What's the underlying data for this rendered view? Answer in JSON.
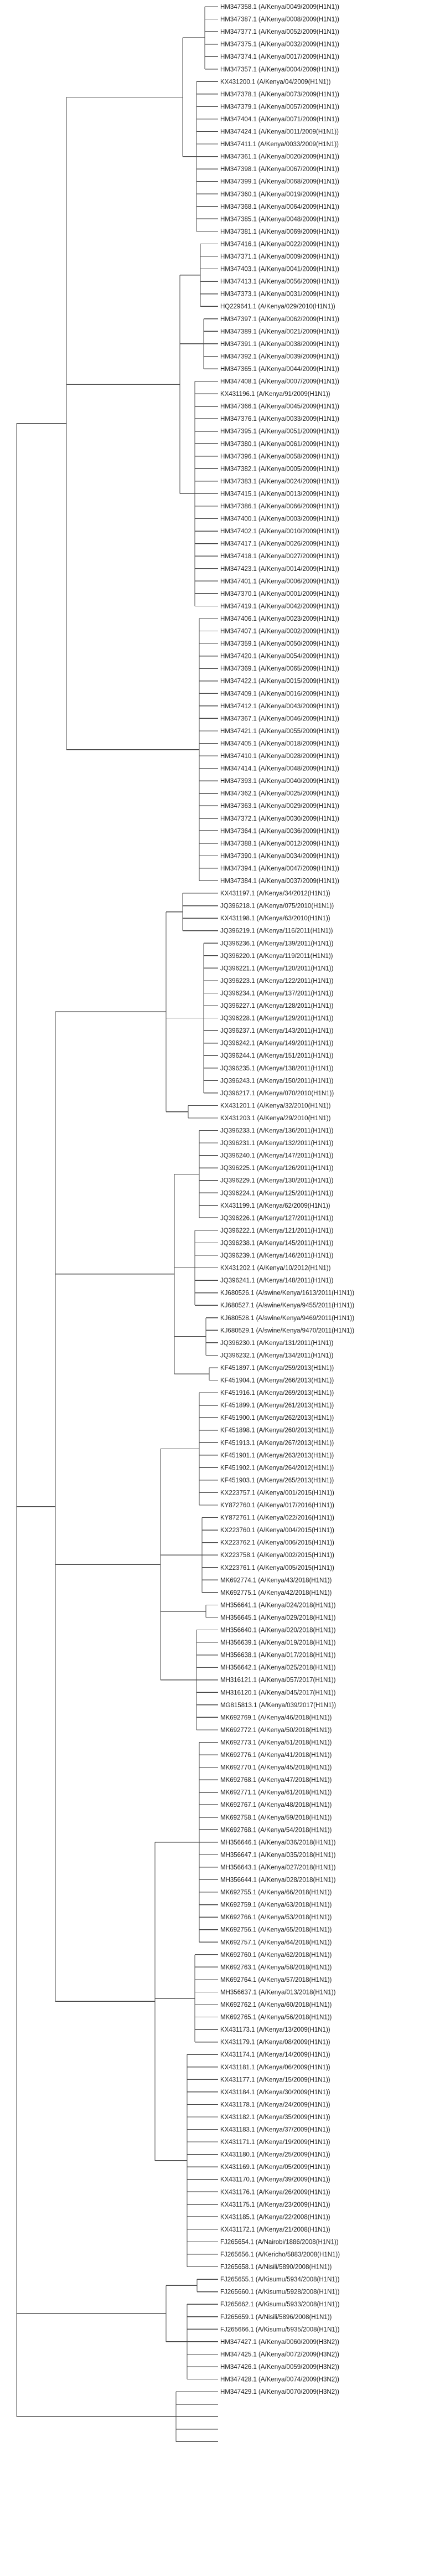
{
  "tree": {
    "leaves": [
      "HM347358.1 (A/Kenya/0049/2009(H1N1))",
      "HM347387.1 (A/Kenya/0008/2009(H1N1))",
      "HM347377.1 (A/Kenya/0052/2009(H1N1))",
      "HM347375.1 (A/Kenya/0032/2009(H1N1))",
      "HM347374.1 (A/Kenya/0017/2009(H1N1))",
      "HM347357.1 (A/Kenya/0004/2009(H1N1))",
      "KX431200.1 (A/Kenya/04/2009(H1N1))",
      "HM347378.1 (A/Kenya/0073/2009(H1N1))",
      "HM347379.1 (A/Kenya/0057/2009(H1N1))",
      "HM347404.1 (A/Kenya/0071/2009(H1N1))",
      "HM347424.1 (A/Kenya/0011/2009(H1N1))",
      "HM347411.1 (A/Kenya/0033/2009(H1N1))",
      "HM347361.1 (A/Kenya/0020/2009(H1N1))",
      "HM347398.1 (A/Kenya/0067/2009(H1N1))",
      "HM347399.1 (A/Kenya/0068/2009(H1N1))",
      "HM347360.1 (A/Kenya/0019/2009(H1N1))",
      "HM347368.1 (A/Kenya/0064/2009(H1N1))",
      "HM347385.1 (A/Kenya/0048/2009(H1N1))",
      "HM347381.1 (A/Kenya/0069/2009(H1N1))",
      "HM347416.1 (A/Kenya/0022/2009(H1N1))",
      "HM347371.1 (A/Kenya/0009/2009(H1N1))",
      "HM347403.1 (A/Kenya/0041/2009(H1N1))",
      "HM347413.1 (A/Kenya/0056/2009(H1N1))",
      "HM347373.1 (A/Kenya/0031/2009(H1N1))",
      "HQ229641.1 (A/Kenya/029/2010(H1N1))",
      "HM347397.1 (A/Kenya/0062/2009(H1N1))",
      "HM347389.1 (A/Kenya/0021/2009(H1N1))",
      "HM347391.1 (A/Kenya/0038/2009(H1N1))",
      "HM347392.1 (A/Kenya/0039/2009(H1N1))",
      "HM347365.1 (A/Kenya/0044/2009(H1N1))",
      "HM347408.1 (A/Kenya/0007/2009(H1N1))",
      "KX431196.1 (A/Kenya/91/2009(H1N1))",
      "HM347366.1 (A/Kenya/0045/2009(H1N1))",
      "HM347376.1 (A/Kenya/0033/2009(H1N1))",
      "HM347395.1 (A/Kenya/0051/2009(H1N1))",
      "HM347380.1 (A/Kenya/0061/2009(H1N1))",
      "HM347396.1 (A/Kenya/0058/2009(H1N1))",
      "HM347382.1 (A/Kenya/0005/2009(H1N1))",
      "HM347383.1 (A/Kenya/0024/2009(H1N1))",
      "HM347415.1 (A/Kenya/0013/2009(H1N1))",
      "HM347386.1 (A/Kenya/0066/2009(H1N1))",
      "HM347400.1 (A/Kenya/0003/2009(H1N1))",
      "HM347402.1 (A/Kenya/0010/2009(H1N1))",
      "HM347417.1 (A/Kenya/0026/2009(H1N1))",
      "HM347418.1 (A/Kenya/0027/2009(H1N1))",
      "HM347423.1 (A/Kenya/0014/2009(H1N1))",
      "HM347401.1 (A/Kenya/0006/2009(H1N1))",
      "HM347370.1 (A/Kenya/0001/2009(H1N1))",
      "HM347419.1 (A/Kenya/0042/2009(H1N1))",
      "HM347406.1 (A/Kenya/0023/2009(H1N1))",
      "HM347407.1 (A/Kenya/0002/2009(H1N1))",
      "HM347359.1 (A/Kenya/0050/2009(H1N1))",
      "HM347420.1 (A/Kenya/0054/2009(H1N1))",
      "HM347369.1 (A/Kenya/0065/2009(H1N1))",
      "HM347422.1 (A/Kenya/0015/2009(H1N1))",
      "HM347409.1 (A/Kenya/0016/2009(H1N1))",
      "HM347412.1 (A/Kenya/0043/2009(H1N1))",
      "HM347367.1 (A/Kenya/0046/2009(H1N1))",
      "HM347421.1 (A/Kenya/0055/2009(H1N1))",
      "HM347405.1 (A/Kenya/0018/2009(H1N1))",
      "HM347410.1 (A/Kenya/0028/2009(H1N1))",
      "HM347414.1 (A/Kenya/0048/2009(H1N1))",
      "HM347393.1 (A/Kenya/0040/2009(H1N1))",
      "HM347362.1 (A/Kenya/0025/2009(H1N1))",
      "HM347363.1 (A/Kenya/0029/2009(H1N1))",
      "HM347372.1 (A/Kenya/0030/2009(H1N1))",
      "HM347364.1 (A/Kenya/0036/2009(H1N1))",
      "HM347388.1 (A/Kenya/0012/2009(H1N1))",
      "HM347390.1 (A/Kenya/0034/2009(H1N1))",
      "HM347394.1 (A/Kenya/0047/2009(H1N1))",
      "HM347384.1 (A/Kenya/0037/2009(H1N1))",
      "KX431197.1 (A/Kenya/34/2012(H1N1))",
      "JQ396218.1 (A/Kenya/075/2010(H1N1))",
      "KX431198.1 (A/Kenya/63/2010(H1N1))",
      "JQ396219.1 (A/Kenya/116/2011(H1N1))",
      "JQ396236.1 (A/Kenya/139/2011(H1N1))",
      "JQ396220.1 (A/Kenya/119/2011(H1N1))",
      "JQ396221.1 (A/Kenya/120/2011(H1N1))",
      "JQ396223.1 (A/Kenya/122/2011(H1N1))",
      "JQ396234.1 (A/Kenya/137/2011(H1N1))",
      "JQ396227.1 (A/Kenya/128/2011(H1N1))",
      "JQ396228.1 (A/Kenya/129/2011(H1N1))",
      "JQ396237.1 (A/Kenya/143/2011(H1N1))",
      "JQ396242.1 (A/Kenya/149/2011(H1N1))",
      "JQ396244.1 (A/Kenya/151/2011(H1N1))",
      "JQ396235.1 (A/Kenya/138/2011(H1N1))",
      "JQ396243.1 (A/Kenya/150/2011(H1N1))",
      "JQ396217.1 (A/Kenya/070/2010(H1N1))",
      "KX431201.1 (A/Kenya/32/2010(H1N1))",
      "KX431203.1 (A/Kenya/29/2010(H1N1))",
      "JQ396233.1 (A/Kenya/136/2011(H1N1))",
      "JQ396231.1 (A/Kenya/132/2011(H1N1))",
      "JQ396240.1 (A/Kenya/147/2011(H1N1))",
      "JQ396225.1 (A/Kenya/126/2011(H1N1))",
      "JQ396229.1 (A/Kenya/130/2011(H1N1))",
      "JQ396224.1 (A/Kenya/125/2011(H1N1))",
      "KX431199.1 (A/Kenya/62/2009(H1N1))",
      "JQ396226.1 (A/Kenya/127/2011(H1N1))",
      "JQ396222.1 (A/Kenya/121/2011(H1N1))",
      "JQ396238.1 (A/Kenya/145/2011(H1N1))",
      "JQ396239.1 (A/Kenya/146/2011(H1N1))",
      "KX431202.1 (A/Kenya/10/2012(H1N1))",
      "JQ396241.1 (A/Kenya/148/2011(H1N1))",
      "KJ680526.1 (A/swine/Kenya/1613/2011(H1N1))",
      "KJ680527.1 (A/swine/Kenya/9455/2011(H1N1))",
      "KJ680528.1 (A/swine/Kenya/9469/2011(H1N1))",
      "KJ680529.1 (A/swine/Kenya/9470/2011(H1N1))",
      "JQ396230.1 (A/Kenya/131/2011(H1N1))",
      "JQ396232.1 (A/Kenya/134/2011(H1N1))",
      "KF451897.1 (A/Kenya/259/2013(H1N1))",
      "KF451904.1 (A/Kenya/266/2013(H1N1))",
      "KF451916.1 (A/Kenya/269/2013(H1N1))",
      "KF451899.1 (A/Kenya/261/2013(H1N1))",
      "KF451900.1 (A/Kenya/262/2013(H1N1))",
      "KF451898.1 (A/Kenya/260/2013(H1N1))",
      "KF451913.1 (A/Kenya/267/2013(H1N1))",
      "KF451901.1 (A/Kenya/263/2013(H1N1))",
      "KF451902.1 (A/Kenya/264/2012(H1N1))",
      "KF451903.1 (A/Kenya/265/2013(H1N1))",
      "KX223757.1 (A/Kenya/001/2015(H1N1))",
      "KY872760.1 (A/Kenya/017/2016(H1N1))",
      "KY872761.1 (A/Kenya/022/2016(H1N1))",
      "KX223760.1 (A/Kenya/004/2015(H1N1))",
      "KX223762.1 (A/Kenya/006/2015(H1N1))",
      "KX223758.1 (A/Kenya/002/2015(H1N1))",
      "KX223761.1 (A/Kenya/005/2015(H1N1))",
      "MK692774.1 (A/Kenya/43/2018(H1N1))",
      "MK692775.1 (A/Kenya/42/2018(H1N1))",
      "MH356641.1 (A/Kenya/024/2018(H1N1))",
      "MH356645.1 (A/Kenya/029/2018(H1N1))",
      "MH356640.1 (A/Kenya/020/2018(H1N1))",
      "MH356639.1 (A/Kenya/019/2018(H1N1))",
      "MH356638.1 (A/Kenya/017/2018(H1N1))",
      "MH356642.1 (A/Kenya/025/2018(H1N1))",
      "MH316121.1 (A/Kenya/057/2017(H1N1))",
      "MH316120.1 (A/Kenya/045/2017(H1N1))",
      "MG815813.1 (A/Kenya/039/2017(H1N1))",
      "MK692769.1 (A/Kenya/46/2018(H1N1))",
      "MK692772.1 (A/Kenya/50/2018(H1N1))",
      "MK692773.1 (A/Kenya/51/2018(H1N1))",
      "MK692776.1 (A/Kenya/41/2018(H1N1))",
      "MK692770.1 (A/Kenya/45/2018(H1N1))",
      "MK692768.1 (A/Kenya/47/2018(H1N1))",
      "MK692771.1 (A/Kenya/61/2018(H1N1))",
      "MK692767.1 (A/Kenya/48/2018(H1N1))",
      "MK692758.1 (A/Kenya/59/2018(H1N1))",
      "MK692768.1 (A/Kenya/54/2018(H1N1))",
      "MH356646.1 (A/Kenya/036/2018(H1N1))",
      "MH356647.1 (A/Kenya/035/2018(H1N1))",
      "MH356643.1 (A/Kenya/027/2018(H1N1))",
      "MH356644.1 (A/Kenya/028/2018(H1N1))",
      "MK692755.1 (A/Kenya/66/2018(H1N1))",
      "MK692759.1 (A/Kenya/63/2018(H1N1))",
      "MK692766.1 (A/Kenya/53/2018(H1N1))",
      "MK692756.1 (A/Kenya/65/2018(H1N1))",
      "MK692757.1 (A/Kenya/64/2018(H1N1))",
      "MK692760.1 (A/Kenya/62/2018(H1N1))",
      "MK692763.1 (A/Kenya/58/2018(H1N1))",
      "MK692764.1 (A/Kenya/57/2018(H1N1))",
      "MH356637.1 (A/Kenya/013/2018(H1N1))",
      "MK692762.1 (A/Kenya/60/2018(H1N1))",
      "MK692765.1 (A/Kenya/56/2018(H1N1))",
      "KX431173.1 (A/Kenya/13/2009(H1N1))",
      "KX431179.1 (A/Kenya/08/2009(H1N1))",
      "KX431174.1 (A/Kenya/14/2009(H1N1))",
      "KX431181.1 (A/Kenya/06/2009(H1N1))",
      "KX431177.1 (A/Kenya/15/2009(H1N1))",
      "KX431184.1 (A/Kenya/30/2009(H1N1))",
      "KX431178.1 (A/Kenya/24/2009(H1N1))",
      "KX431182.1 (A/Kenya/35/2009(H1N1))",
      "KX431183.1 (A/Kenya/37/2009(H1N1))",
      "KX431171.1 (A/Kenya/19/2009(H1N1))",
      "KX431180.1 (A/Kenya/25/2009(H1N1))",
      "KX431169.1 (A/Kenya/05/2009(H1N1))",
      "KX431170.1 (A/Kenya/39/2009(H1N1))",
      "KX431176.1 (A/Kenya/26/2009(H1N1))",
      "KX431175.1 (A/Kenya/23/2009(H1N1))",
      "KX431185.1 (A/Kenya/22/2008(H1N1))",
      "KX431172.1 (A/Kenya/21/2008(H1N1))",
      "FJ265654.1 (A/Nairobi/1886/2008(H1N1))",
      "FJ265656.1 (A/Kericho/5883/2008(H1N1))",
      "FJ265658.1 (A/Nisili/5890/2008(H1N1))",
      "FJ265655.1 (A/Kisumu/5934/2008(H1N1))",
      "FJ265660.1 (A/Kisumu/5928/2008(H1N1))",
      "FJ265662.1 (A/Kisumu/5933/2008(H1N1))",
      "FJ265659.1 (A/Nisili/5896/2008(H1N1))",
      "FJ265666.1 (A/Kisumu/5935/2008(H1N1))",
      "HM347427.1 (A/Kenya/0060/2009(H3N2))",
      "HM347425.1 (A/Kenya/0072/2009(H3N2))",
      "HM347426.1 (A/Kenya/0059/2009(H3N2))",
      "HM347428.1 (A/Kenya/0074/2009(H3N2))",
      "HM347429.1 (A/Kenya/0070/2009(H3N2))"
    ]
  }
}
